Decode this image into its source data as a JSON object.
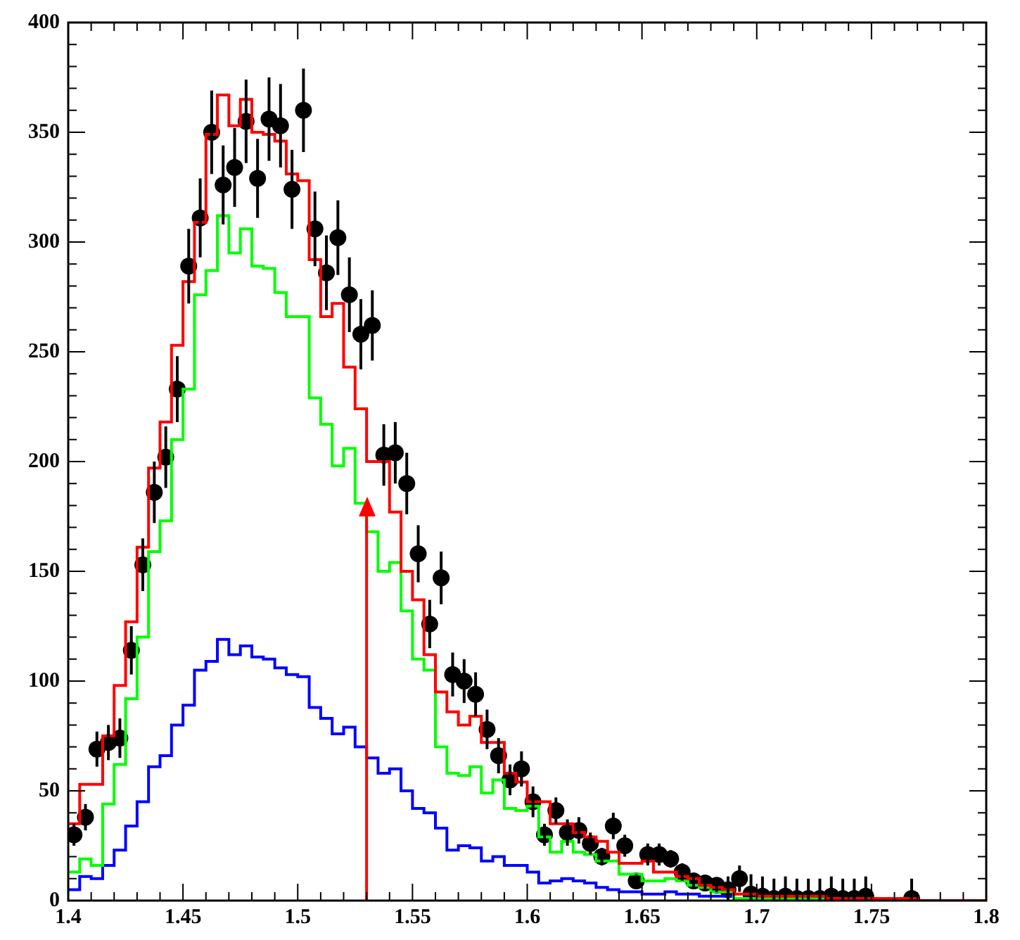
{
  "chart_data": {
    "type": "histogram",
    "marker": "circle",
    "bins": [
      1.4,
      1.405,
      1.41,
      1.415,
      1.42,
      1.425,
      1.43,
      1.435,
      1.44,
      1.445,
      1.45,
      1.455,
      1.46,
      1.465,
      1.47,
      1.475,
      1.48,
      1.485,
      1.49,
      1.495,
      1.5,
      1.505,
      1.51,
      1.515,
      1.52,
      1.525,
      1.53,
      1.535,
      1.54,
      1.545,
      1.55,
      1.555,
      1.56,
      1.565,
      1.57,
      1.575,
      1.58,
      1.585,
      1.59,
      1.595,
      1.6,
      1.605,
      1.61,
      1.615,
      1.62,
      1.625,
      1.63,
      1.635,
      1.64,
      1.645,
      1.65,
      1.655,
      1.66,
      1.665,
      1.67,
      1.675,
      1.68,
      1.685,
      1.69,
      1.695,
      1.7,
      1.705,
      1.71,
      1.715,
      1.72,
      1.725,
      1.73,
      1.735,
      1.74,
      1.745,
      1.75,
      1.755,
      1.76,
      1.765,
      1.77,
      1.775,
      1.78,
      1.785,
      1.79,
      1.795,
      1.8
    ],
    "series": [
      {
        "color": "#ff0000",
        "values": [
          35,
          53,
          53,
          75,
          98,
          127,
          161,
          197,
          218,
          253,
          282,
          309,
          349,
          367,
          353,
          365,
          350,
          349,
          346,
          331,
          328,
          292,
          266,
          272,
          243,
          224,
          200,
          200,
          177,
          150,
          137,
          112,
          95,
          86,
          80,
          84,
          72,
          72,
          58,
          54,
          45,
          45,
          35,
          35,
          31,
          29,
          27,
          22,
          17,
          17,
          18,
          13,
          13,
          11,
          10,
          7,
          6,
          5,
          3,
          3,
          2,
          2,
          2,
          2,
          2,
          2,
          1,
          1,
          1,
          1,
          1,
          1,
          1,
          1,
          0,
          0,
          0,
          0,
          0,
          0
        ]
      },
      {
        "color": "#00ff00",
        "values": [
          13,
          19,
          16,
          44,
          62,
          92,
          120,
          159,
          173,
          210,
          233,
          276,
          287,
          312,
          295,
          306,
          289,
          288,
          277,
          266,
          266,
          229,
          217,
          198,
          206,
          181,
          168,
          150,
          154,
          132,
          110,
          105,
          70,
          58,
          57,
          61,
          49,
          55,
          42,
          41,
          43,
          29,
          22,
          27,
          22,
          21,
          18,
          18,
          12,
          12,
          9,
          9,
          10,
          9,
          7,
          6,
          4,
          4,
          1,
          1,
          1,
          1,
          1,
          1,
          1,
          1,
          1,
          0,
          0,
          0,
          0,
          0,
          0,
          0,
          0,
          0,
          0,
          0,
          0,
          0
        ]
      },
      {
        "color": "#0000ff",
        "values": [
          5,
          11,
          10,
          16,
          23,
          34,
          45,
          61,
          66,
          80,
          89,
          105,
          109,
          119,
          112,
          116,
          111,
          110,
          106,
          103,
          102,
          88,
          83,
          76,
          79,
          70,
          65,
          58,
          60,
          50,
          42,
          40,
          33,
          23,
          25,
          24,
          18,
          20,
          16,
          16,
          13,
          8,
          9,
          10,
          9,
          8,
          6,
          5,
          4,
          4,
          3,
          3,
          4,
          3,
          3,
          2,
          2,
          2,
          1,
          1,
          1,
          1,
          1,
          0,
          0,
          0,
          0,
          0,
          0,
          0,
          0,
          0,
          0,
          0,
          0,
          0,
          0,
          0,
          0,
          0
        ]
      },
      {
        "type": "scatter",
        "color": "#000000",
        "x": [
          1.4025,
          1.4075,
          1.4125,
          1.4175,
          1.4225,
          1.4275,
          1.4325,
          1.4375,
          1.4425,
          1.4475,
          1.4525,
          1.4575,
          1.4625,
          1.4675,
          1.4725,
          1.4775,
          1.4825,
          1.4875,
          1.4925,
          1.4975,
          1.5025,
          1.5075,
          1.5125,
          1.5175,
          1.5225,
          1.5275,
          1.5325,
          1.5375,
          1.5425,
          1.5475,
          1.5525,
          1.5575,
          1.5625,
          1.5675,
          1.5725,
          1.5775,
          1.5825,
          1.5875,
          1.5925,
          1.5975,
          1.6025,
          1.6075,
          1.6125,
          1.6175,
          1.6225,
          1.6275,
          1.6325,
          1.6375,
          1.6425,
          1.6475,
          1.6525,
          1.6575,
          1.6625,
          1.6675,
          1.6725,
          1.6775,
          1.6825,
          1.6875,
          1.6925,
          1.6975,
          1.7025,
          1.7075,
          1.7125,
          1.7175,
          1.7225,
          1.7275,
          1.7325,
          1.7375,
          1.7425,
          1.7475,
          1.7525,
          1.7575,
          1.7625,
          1.7675
        ],
        "values": [
          30,
          38,
          69,
          72,
          74,
          114,
          153,
          186,
          202,
          233,
          289,
          311,
          350,
          326,
          334,
          355,
          329,
          356,
          353,
          324,
          360,
          306,
          286,
          302,
          276,
          258,
          262,
          203,
          204,
          190,
          158,
          126,
          147,
          103,
          100,
          94,
          78,
          66,
          55,
          60,
          45,
          30,
          41,
          31,
          32,
          26,
          20,
          34,
          25,
          9,
          21,
          21,
          19,
          13,
          9,
          8,
          7,
          5,
          10,
          3,
          2,
          1,
          2,
          1,
          1,
          1,
          2,
          1,
          1,
          2,
          null,
          null,
          null,
          1
        ],
        "errors": [
          5,
          6,
          8,
          8,
          9,
          11,
          12,
          14,
          14,
          15,
          17,
          18,
          19,
          18,
          18,
          19,
          18,
          19,
          19,
          18,
          19,
          17,
          17,
          17,
          17,
          16,
          16,
          14,
          14,
          14,
          13,
          11,
          12,
          10,
          10,
          10,
          9,
          8,
          7,
          8,
          7,
          5,
          6,
          6,
          6,
          5,
          4,
          6,
          5,
          3,
          5,
          5,
          4,
          4,
          3,
          3,
          3,
          [
            0,
            11
          ],
          [
            4,
            16
          ],
          [
            0,
            12
          ],
          [
            0,
            11
          ],
          [
            0,
            10
          ],
          [
            0,
            11
          ],
          [
            0,
            10
          ],
          [
            0,
            10
          ],
          [
            0,
            10
          ],
          [
            0,
            11
          ],
          [
            0,
            10
          ],
          [
            0,
            10
          ],
          [
            0,
            11
          ],
          null,
          null,
          null,
          [
            0,
            10
          ]
        ]
      }
    ],
    "xlim": [
      1.4,
      1.8
    ],
    "xticks": [
      1.4,
      {
        "value": 1.41,
        "label": null
      },
      {
        "value": 1.42,
        "label": null
      },
      {
        "value": 1.43,
        "label": null
      },
      {
        "value": 1.44,
        "label": null
      },
      1.45,
      {
        "value": 1.46,
        "label": null
      },
      {
        "value": 1.47,
        "label": null
      },
      {
        "value": 1.48,
        "label": null
      },
      {
        "value": 1.49,
        "label": null
      },
      1.5,
      {
        "value": 1.51,
        "label": null
      },
      {
        "value": 1.52,
        "label": null
      },
      {
        "value": 1.53,
        "label": null
      },
      {
        "value": 1.54,
        "label": null
      },
      1.55,
      {
        "value": 1.56,
        "label": null
      },
      {
        "value": 1.57,
        "label": null
      },
      {
        "value": 1.58,
        "label": null
      },
      {
        "value": 1.59,
        "label": null
      },
      1.6,
      {
        "value": 1.61,
        "label": null
      },
      {
        "value": 1.62,
        "label": null
      },
      {
        "value": 1.63,
        "label": null
      },
      {
        "value": 1.64,
        "label": null
      },
      1.65,
      {
        "value": 1.66,
        "label": null
      },
      {
        "value": 1.67,
        "label": null
      },
      {
        "value": 1.68,
        "label": null
      },
      {
        "value": 1.69,
        "label": null
      },
      1.7,
      {
        "value": 1.71,
        "label": null
      },
      {
        "value": 1.72,
        "label": null
      },
      {
        "value": 1.73,
        "label": null
      },
      {
        "value": 1.74,
        "label": null
      },
      1.75,
      {
        "value": 1.76,
        "label": null
      },
      {
        "value": 1.77,
        "label": null
      },
      {
        "value": 1.78,
        "label": null
      },
      {
        "value": 1.79,
        "label": null
      },
      1.8
    ],
    "ylim": [
      0,
      400
    ],
    "yticks": [
      0,
      {
        "value": 10,
        "label": null
      },
      {
        "value": 20,
        "label": null
      },
      {
        "value": 30,
        "label": null
      },
      {
        "value": 40,
        "label": null
      },
      50,
      {
        "value": 60,
        "label": null
      },
      {
        "value": 70,
        "label": null
      },
      {
        "value": 80,
        "label": null
      },
      {
        "value": 90,
        "label": null
      },
      100,
      {
        "value": 110,
        "label": null
      },
      {
        "value": 120,
        "label": null
      },
      {
        "value": 130,
        "label": null
      },
      {
        "value": 140,
        "label": null
      },
      150,
      {
        "value": 160,
        "label": null
      },
      {
        "value": 170,
        "label": null
      },
      {
        "value": 180,
        "label": null
      },
      {
        "value": 190,
        "label": null
      },
      200,
      {
        "value": 210,
        "label": null
      },
      {
        "value": 220,
        "label": null
      },
      {
        "value": 230,
        "label": null
      },
      {
        "value": 240,
        "label": null
      },
      250,
      {
        "value": 260,
        "label": null
      },
      {
        "value": 270,
        "label": null
      },
      {
        "value": 280,
        "label": null
      },
      {
        "value": 290,
        "label": null
      },
      300,
      {
        "value": 310,
        "label": null
      },
      {
        "value": 320,
        "label": null
      },
      {
        "value": 330,
        "label": null
      },
      {
        "value": 340,
        "label": null
      },
      350,
      {
        "value": 360,
        "label": null
      },
      {
        "value": 370,
        "label": null
      },
      {
        "value": 380,
        "label": null
      },
      {
        "value": 390,
        "label": null
      },
      400
    ],
    "ref_lines": [
      {
        "axis": "x",
        "value": 1.53,
        "color": "#ff0000"
      }
    ]
  }
}
